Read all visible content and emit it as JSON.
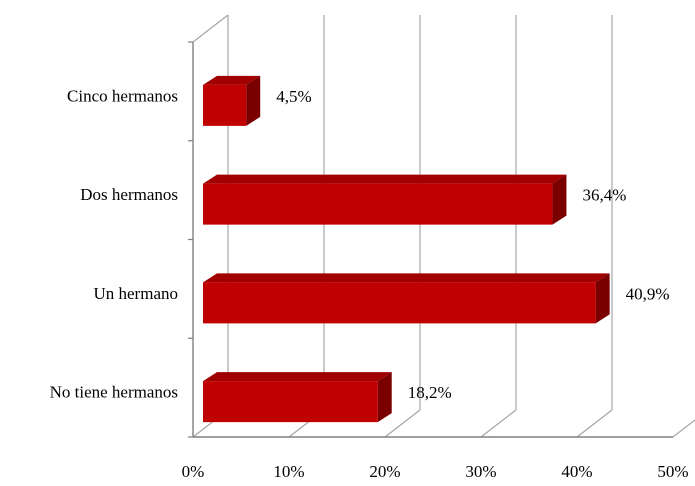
{
  "chart_data": {
    "type": "bar",
    "orientation": "horizontal",
    "style": "3d",
    "categories": [
      "Cinco hermanos",
      "Dos hermanos",
      "Un hermano",
      "No tiene hermanos"
    ],
    "values": [
      4.5,
      36.4,
      40.9,
      18.2
    ],
    "value_labels": [
      "4,5%",
      "36,4%",
      "40,9%",
      "18,2%"
    ],
    "x_ticks": [
      0,
      10,
      20,
      30,
      40,
      50
    ],
    "x_tick_labels": [
      "0%",
      "10%",
      "20%",
      "30%",
      "40%",
      "50%"
    ],
    "xlim": [
      0,
      50
    ],
    "grid": true,
    "legend": "none",
    "title": "",
    "xlabel": "",
    "ylabel": "",
    "colors": {
      "bar_front": "#c00000",
      "bar_top": "#a00000",
      "bar_side": "#7a0000",
      "grid": "#a6a6a6",
      "axis": "#808080"
    }
  }
}
